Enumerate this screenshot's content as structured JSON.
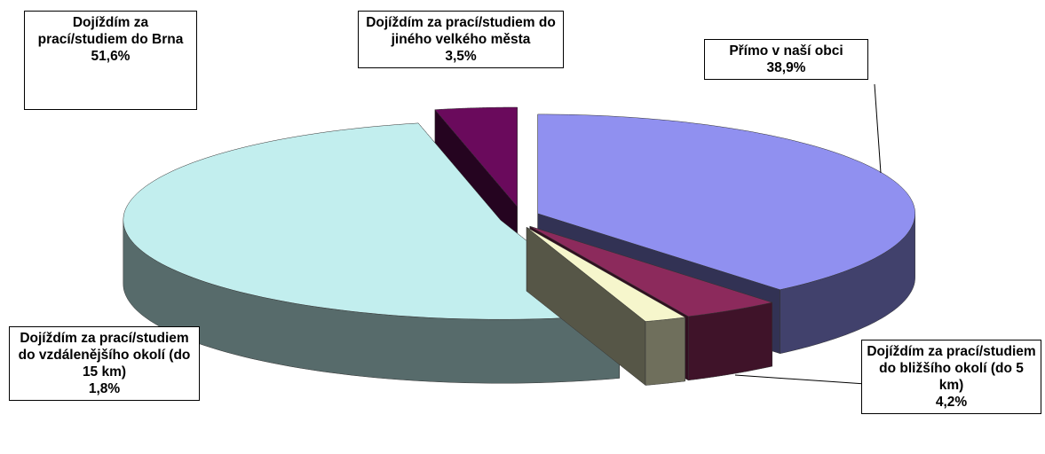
{
  "chart_data": {
    "type": "pie",
    "categories": [
      "Přímo v naší obci",
      "Dojíždím za prací/studiem do bližšího okolí (do 5 km)",
      "Dojíždím za prací/studiem do vzdálenějšího okolí (do 15 km)",
      "Dojíždím za prací/studiem do Brna",
      "Dojíždím za prací/studiem do jiného velkého města"
    ],
    "values": [
      38.9,
      4.2,
      1.8,
      51.6,
      3.5
    ],
    "value_labels": [
      "38,9%",
      "4,2%",
      "1,8%",
      "51,6%",
      "3,5%"
    ],
    "colors": [
      "#9090f0",
      "#8c2a5c",
      "#f6f6cc",
      "#c2eeee",
      "#6a0a5c"
    ]
  }
}
